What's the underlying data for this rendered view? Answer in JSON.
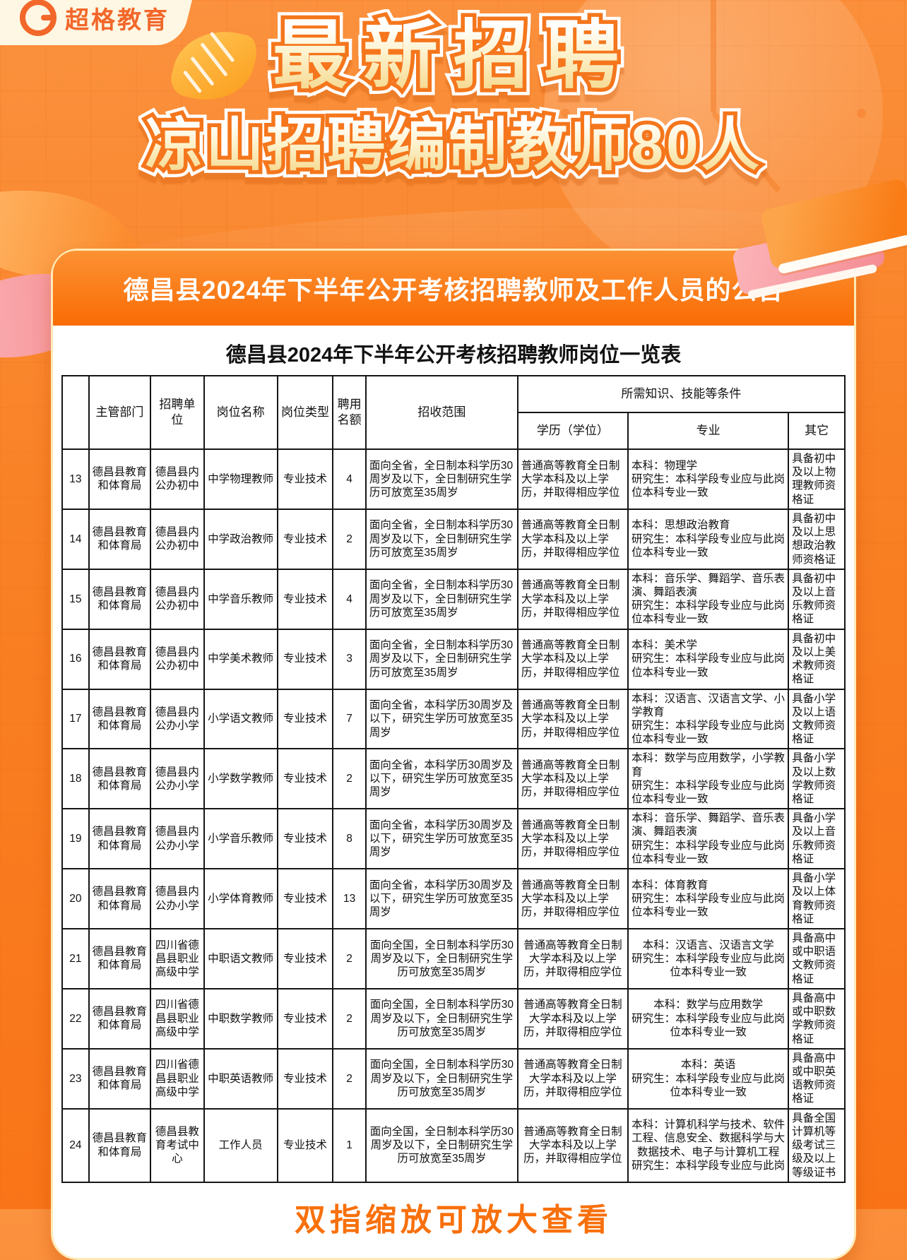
{
  "brand": {
    "name": "超格教育"
  },
  "hero": {
    "headline": "最新招聘",
    "subheadline": "凉山招聘编制教师80人"
  },
  "announcement": {
    "banner_title": "德昌县2024年下半年公开考核招聘教师及工作人员的公告"
  },
  "icons": {
    "logo": "g-ring-icon",
    "decorations": [
      "clock-icon",
      "paper-swoosh-icon",
      "leaf-icon",
      "books-icon"
    ]
  },
  "colors": {
    "brand_orange": "#F2672A",
    "page_accent": "#F97316",
    "banner_gradient_top": "#FC9133",
    "banner_gradient_bottom": "#F96C05",
    "card_border": "#FFE9B5",
    "hint_text": "#F8700C",
    "table_border": "#161616"
  },
  "table": {
    "title": "德昌县2024年下半年公开考核招聘教师岗位一览表",
    "headers": {
      "no": "",
      "dept": "主管部门",
      "employer": "招聘单位",
      "post": "岗位名称",
      "type": "岗位类型",
      "quota": "聘用名额",
      "scope": "招收范围",
      "requirements": "所需知识、技能等条件",
      "degree": "学历（学位）",
      "major": "专业",
      "other": "其它"
    },
    "rows": [
      {
        "no": "13",
        "dept": "德昌县教育和体育局",
        "employer": "德昌县内公办初中",
        "post": "中学物理教师",
        "type": "专业技术",
        "quota": "4",
        "scope": "面向全省，全日制本科学历30周岁及以下，全日制研究生学历可放宽至35周岁",
        "degree": "普通高等教育全日制大学本科及以上学历，并取得相应学位",
        "major": "本科：物理学\n研究生：本科学段专业应与此岗位本科专业一致",
        "other": "具备初中及以上物理教师资格证",
        "centered": false
      },
      {
        "no": "14",
        "dept": "德昌县教育和体育局",
        "employer": "德昌县内公办初中",
        "post": "中学政治教师",
        "type": "专业技术",
        "quota": "2",
        "scope": "面向全省，全日制本科学历30周岁及以下，全日制研究生学历可放宽至35周岁",
        "degree": "普通高等教育全日制大学本科及以上学历，并取得相应学位",
        "major": "本科：思想政治教育\n研究生：本科学段专业应与此岗位本科专业一致",
        "other": "具备初中及以上思想政治教师资格证",
        "centered": false
      },
      {
        "no": "15",
        "dept": "德昌县教育和体育局",
        "employer": "德昌县内公办初中",
        "post": "中学音乐教师",
        "type": "专业技术",
        "quota": "4",
        "scope": "面向全省，全日制本科学历30周岁及以下，全日制研究生学历可放宽至35周岁",
        "degree": "普通高等教育全日制大学本科及以上学历，并取得相应学位",
        "major": "本科：音乐学、舞蹈学、音乐表演、舞蹈表演\n研究生：本科学段专业应与此岗位本科专业一致",
        "other": "具备初中及以上音乐教师资格证",
        "centered": false
      },
      {
        "no": "16",
        "dept": "德昌县教育和体育局",
        "employer": "德昌县内公办初中",
        "post": "中学美术教师",
        "type": "专业技术",
        "quota": "3",
        "scope": "面向全省，全日制本科学历30周岁及以下，全日制研究生学历可放宽至35周岁",
        "degree": "普通高等教育全日制大学本科及以上学历，并取得相应学位",
        "major": "本科：美术学\n研究生：本科学段专业应与此岗位本科专业一致",
        "other": "具备初中及以上美术教师资格证",
        "centered": false
      },
      {
        "no": "17",
        "dept": "德昌县教育和体育局",
        "employer": "德昌县内公办小学",
        "post": "小学语文教师",
        "type": "专业技术",
        "quota": "7",
        "scope": "面向全省，本科学历30周岁及以下，研究生学历可放宽至35周岁",
        "degree": "普通高等教育全日制大学本科及以上学历，并取得相应学位",
        "major": "本科：汉语言、汉语言文学、小学教育\n研究生：本科学段专业应与此岗位本科专业一致",
        "other": "具备小学及以上语文教师资格证",
        "centered": false
      },
      {
        "no": "18",
        "dept": "德昌县教育和体育局",
        "employer": "德昌县内公办小学",
        "post": "小学数学教师",
        "type": "专业技术",
        "quota": "2",
        "scope": "面向全省，本科学历30周岁及以下，研究生学历可放宽至35周岁",
        "degree": "普通高等教育全日制大学本科及以上学历，并取得相应学位",
        "major": "本科：数学与应用数学，小学教育\n研究生：本科学段专业应与此岗位本科专业一致",
        "other": "具备小学及以上数学教师资格证",
        "centered": false
      },
      {
        "no": "19",
        "dept": "德昌县教育和体育局",
        "employer": "德昌县内公办小学",
        "post": "小学音乐教师",
        "type": "专业技术",
        "quota": "8",
        "scope": "面向全省，本科学历30周岁及以下，研究生学历可放宽至35周岁",
        "degree": "普通高等教育全日制大学本科及以上学历，并取得相应学位",
        "major": "本科：音乐学、舞蹈学、音乐表演、舞蹈表演\n研究生：本科学段专业应与此岗位本科专业一致",
        "other": "具备小学及以上音乐教师资格证",
        "centered": false
      },
      {
        "no": "20",
        "dept": "德昌县教育和体育局",
        "employer": "德昌县内公办小学",
        "post": "小学体育教师",
        "type": "专业技术",
        "quota": "13",
        "scope": "面向全省，本科学历30周岁及以下，研究生学历可放宽至35周岁",
        "degree": "普通高等教育全日制大学本科及以上学历，并取得相应学位",
        "major": "本科：体育教育\n研究生：本科学段专业应与此岗位本科专业一致",
        "other": "具备小学及以上体育教师资格证",
        "centered": false
      },
      {
        "no": "21",
        "dept": "德昌县教育和体育局",
        "employer": "四川省德昌县职业高级中学",
        "post": "中职语文教师",
        "type": "专业技术",
        "quota": "2",
        "scope": "面向全国，全日制本科学历30周岁及以下，全日制研究生学历可放宽至35周岁",
        "degree": "普通高等教育全日制大学本科及以上学历，并取得相应学位",
        "major": "本科：汉语言、汉语言文学\n研究生：本科学段专业应与此岗位本科专业一致",
        "other": "具备高中或中职语文教师资格证",
        "centered": true
      },
      {
        "no": "22",
        "dept": "德昌县教育和体育局",
        "employer": "四川省德昌县职业高级中学",
        "post": "中职数学教师",
        "type": "专业技术",
        "quota": "2",
        "scope": "面向全国，全日制本科学历30周岁及以下，全日制研究生学历可放宽至35周岁",
        "degree": "普通高等教育全日制大学本科及以上学历，并取得相应学位",
        "major": "本科：数学与应用数学\n研究生：本科学段专业应与此岗位本科专业一致",
        "other": "具备高中或中职数学教师资格证",
        "centered": true
      },
      {
        "no": "23",
        "dept": "德昌县教育和体育局",
        "employer": "四川省德昌县职业高级中学",
        "post": "中职英语教师",
        "type": "专业技术",
        "quota": "2",
        "scope": "面向全国，全日制本科学历30周岁及以下，全日制研究生学历可放宽至35周岁",
        "degree": "普通高等教育全日制大学本科及以上学历，并取得相应学位",
        "major": "本科：英语\n研究生：本科学段专业应与此岗位本科专业一致",
        "other": "具备高中或中职英语教师资格证",
        "centered": true
      },
      {
        "no": "24",
        "dept": "德昌县教育和体育局",
        "employer": "德昌县教育考试中心",
        "post": "工作人员",
        "type": "专业技术",
        "quota": "1",
        "scope": "面向全国，全日制本科学历30周岁及以下，全日制研究生学历可放宽至35周岁",
        "degree": "普通高等教育全日制大学本科及以上学历，并取得相应学位",
        "major": "本科：计算机科学与技术、软件工程、信息安全、数据科学与大数据技术、电子与计算机工程\n研究生：本科学段专业应与此岗",
        "other": "具备全国计算机等级考试三级及以上等级证书",
        "centered": true
      }
    ]
  },
  "footer": {
    "hint": "双指缩放可放大查看"
  }
}
